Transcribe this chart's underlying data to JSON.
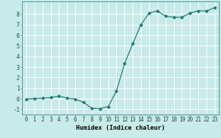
{
  "x": [
    0,
    1,
    2,
    3,
    4,
    5,
    6,
    7,
    8,
    9,
    10,
    11,
    12,
    13,
    14,
    15,
    16,
    17,
    18,
    19,
    20,
    21,
    22,
    23
  ],
  "y": [
    -0.05,
    0.0,
    0.05,
    0.1,
    0.25,
    0.05,
    -0.05,
    -0.35,
    -0.9,
    -0.95,
    -0.75,
    0.7,
    3.3,
    5.2,
    7.0,
    8.1,
    8.3,
    7.8,
    7.7,
    7.7,
    8.1,
    8.3,
    8.3,
    8.6
  ],
  "line_color": "#1a7a6e",
  "marker": "D",
  "marker_size": 2.5,
  "bg_color": "#c8eae8",
  "grid_color": "#ffffff",
  "xlabel": "Humidex (Indice chaleur)",
  "xlim": [
    -0.5,
    23.5
  ],
  "ylim": [
    -1.5,
    9.2
  ],
  "ytick_values": [
    -1,
    0,
    1,
    2,
    3,
    4,
    5,
    6,
    7,
    8
  ],
  "tick_fontsize": 5.5,
  "label_fontsize": 6.5
}
